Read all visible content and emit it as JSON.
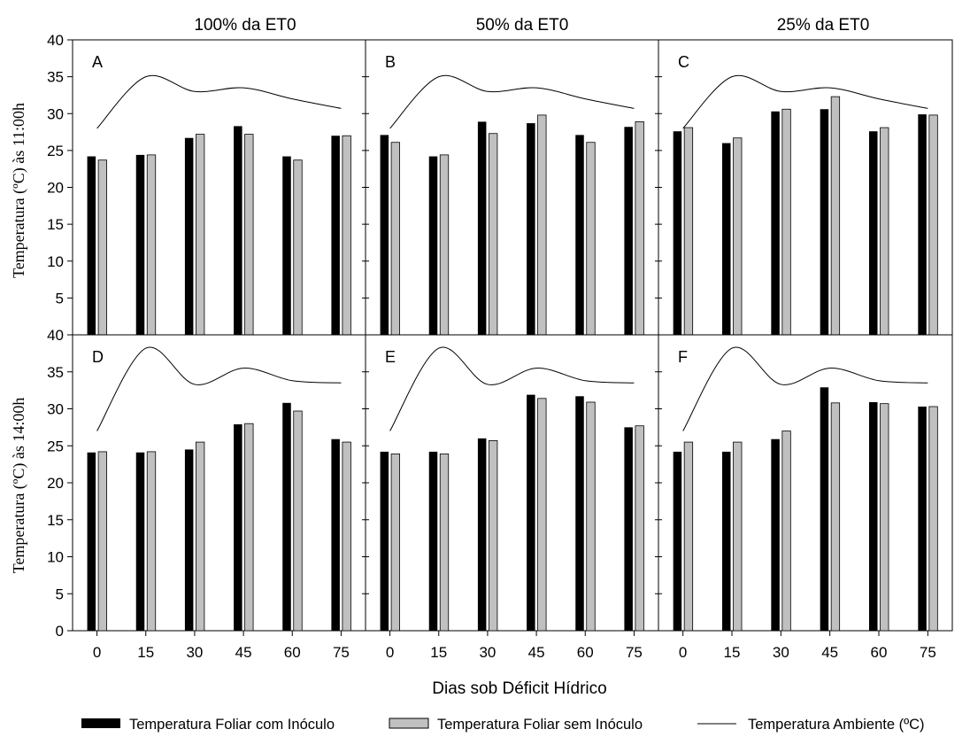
{
  "column_titles": [
    "100% da ET0",
    "50% da ET0",
    "25% da ET0"
  ],
  "y_axis_labels": [
    "Temperatura (ºC) às 11:00h",
    "Temperatura (ºC) às 14:00h"
  ],
  "x_axis_label": "Dias sob Déficit Hídrico",
  "legend": {
    "com": "Temperatura Foliar com Inóculo",
    "sem": "Temperatura Foliar sem Inóculo",
    "amb": "Temperatura Ambiente (ºC)"
  },
  "colors": {
    "com": "#000000",
    "sem": "#c0c0c0",
    "amb": "#000000"
  },
  "chart_data": [
    {
      "type": "bar",
      "panel": "A",
      "categories": [
        "0",
        "15",
        "30",
        "45",
        "60",
        "75"
      ],
      "ylim": [
        0,
        40
      ],
      "yticks": [
        0,
        5,
        10,
        15,
        20,
        25,
        30,
        35,
        40
      ],
      "series": [
        {
          "name": "Temperatura Foliar com Inóculo",
          "values": [
            24.2,
            24.4,
            26.7,
            28.3,
            24.2,
            27.0
          ]
        },
        {
          "name": "Temperatura Foliar sem Inóculo",
          "values": [
            23.7,
            24.4,
            27.2,
            27.2,
            23.7,
            27.0
          ]
        },
        {
          "name": "Temperatura Ambiente (ºC)",
          "type": "line",
          "values": [
            28.0,
            35.0,
            33.0,
            33.5,
            32.0,
            30.7
          ]
        }
      ]
    },
    {
      "type": "bar",
      "panel": "B",
      "categories": [
        "0",
        "15",
        "30",
        "45",
        "60",
        "75"
      ],
      "ylim": [
        0,
        40
      ],
      "yticks": [
        0,
        5,
        10,
        15,
        20,
        25,
        30,
        35,
        40
      ],
      "series": [
        {
          "name": "Temperatura Foliar com Inóculo",
          "values": [
            27.1,
            24.2,
            28.9,
            28.7,
            27.1,
            28.2
          ]
        },
        {
          "name": "Temperatura Foliar sem Inóculo",
          "values": [
            26.1,
            24.4,
            27.3,
            29.8,
            26.1,
            28.9
          ]
        },
        {
          "name": "Temperatura Ambiente (ºC)",
          "type": "line",
          "values": [
            28.0,
            35.0,
            33.0,
            33.5,
            32.0,
            30.7
          ]
        }
      ]
    },
    {
      "type": "bar",
      "panel": "C",
      "categories": [
        "0",
        "15",
        "30",
        "45",
        "60",
        "75"
      ],
      "ylim": [
        0,
        40
      ],
      "yticks": [
        0,
        5,
        10,
        15,
        20,
        25,
        30,
        35,
        40
      ],
      "series": [
        {
          "name": "Temperatura Foliar com Inóculo",
          "values": [
            27.6,
            26.0,
            30.3,
            30.6,
            27.6,
            29.9
          ]
        },
        {
          "name": "Temperatura Foliar sem Inóculo",
          "values": [
            28.1,
            26.7,
            30.6,
            32.3,
            28.1,
            29.8
          ]
        },
        {
          "name": "Temperatura Ambiente (ºC)",
          "type": "line",
          "values": [
            28.0,
            35.0,
            33.0,
            33.5,
            32.0,
            30.7
          ]
        }
      ]
    },
    {
      "type": "bar",
      "panel": "D",
      "categories": [
        "0",
        "15",
        "30",
        "45",
        "60",
        "75"
      ],
      "ylim": [
        0,
        40
      ],
      "yticks": [
        0,
        5,
        10,
        15,
        20,
        25,
        30,
        35,
        40
      ],
      "series": [
        {
          "name": "Temperatura Foliar com Inóculo",
          "values": [
            24.1,
            24.1,
            24.5,
            27.9,
            30.8,
            25.9
          ]
        },
        {
          "name": "Temperatura Foliar sem Inóculo",
          "values": [
            24.2,
            24.2,
            25.5,
            28.0,
            29.7,
            25.5
          ]
        },
        {
          "name": "Temperatura Ambiente (ºC)",
          "type": "line",
          "values": [
            27.0,
            38.2,
            33.3,
            35.5,
            33.8,
            33.5
          ]
        }
      ]
    },
    {
      "type": "bar",
      "panel": "E",
      "categories": [
        "0",
        "15",
        "30",
        "45",
        "60",
        "75"
      ],
      "ylim": [
        0,
        40
      ],
      "yticks": [
        0,
        5,
        10,
        15,
        20,
        25,
        30,
        35,
        40
      ],
      "series": [
        {
          "name": "Temperatura Foliar com Inóculo",
          "values": [
            24.2,
            24.2,
            26.0,
            31.9,
            31.7,
            27.5
          ]
        },
        {
          "name": "Temperatura Foliar sem Inóculo",
          "values": [
            23.9,
            23.9,
            25.7,
            31.4,
            30.9,
            27.7
          ]
        },
        {
          "name": "Temperatura Ambiente (ºC)",
          "type": "line",
          "values": [
            27.0,
            38.2,
            33.3,
            35.5,
            33.8,
            33.5
          ]
        }
      ]
    },
    {
      "type": "bar",
      "panel": "F",
      "categories": [
        "0",
        "15",
        "30",
        "45",
        "60",
        "75"
      ],
      "ylim": [
        0,
        40
      ],
      "yticks": [
        0,
        5,
        10,
        15,
        20,
        25,
        30,
        35,
        40
      ],
      "series": [
        {
          "name": "Temperatura Foliar com Inóculo",
          "values": [
            24.2,
            24.2,
            25.9,
            32.9,
            30.9,
            30.3
          ]
        },
        {
          "name": "Temperatura Foliar sem Inóculo",
          "values": [
            25.5,
            25.5,
            27.0,
            30.8,
            30.7,
            30.3
          ]
        },
        {
          "name": "Temperatura Ambiente (ºC)",
          "type": "line",
          "values": [
            27.0,
            38.2,
            33.3,
            35.5,
            33.8,
            33.5
          ]
        }
      ]
    }
  ]
}
